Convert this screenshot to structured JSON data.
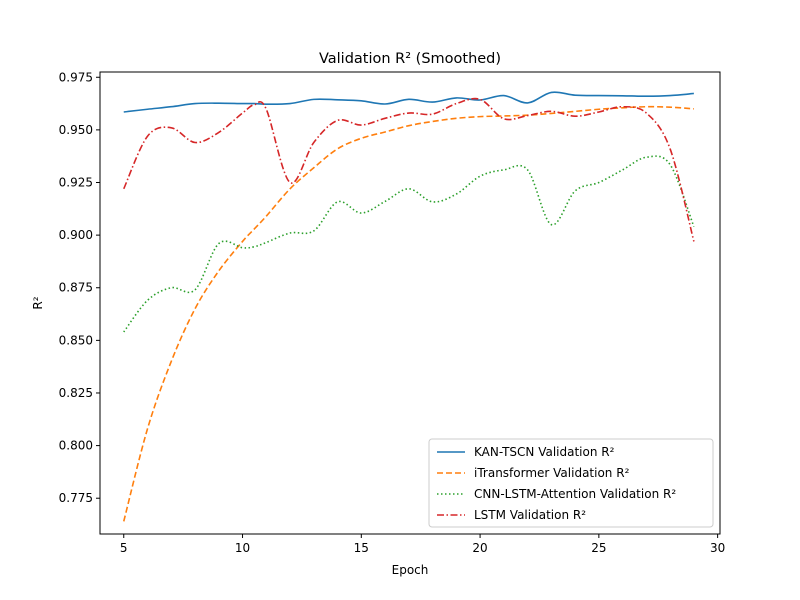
{
  "chart_data": {
    "type": "line",
    "title": "Validation R² (Smoothed)",
    "xlabel": "Epoch",
    "ylabel": "R²",
    "xlim": [
      4.0,
      30.1
    ],
    "ylim": [
      0.758,
      0.9775
    ],
    "xticks": [
      5,
      10,
      15,
      20,
      25,
      30
    ],
    "xtick_labels": [
      "5",
      "10",
      "15",
      "20",
      "25",
      "30"
    ],
    "yticks": [
      0.775,
      0.8,
      0.825,
      0.85,
      0.875,
      0.9,
      0.925,
      0.95,
      0.975
    ],
    "ytick_labels": [
      "0.775",
      "0.800",
      "0.825",
      "0.850",
      "0.875",
      "0.900",
      "0.925",
      "0.950",
      "0.975"
    ],
    "grid": false,
    "legend_position": "lower-right",
    "x": [
      5,
      6,
      7,
      8,
      9,
      10,
      10.5,
      11,
      12,
      13,
      14,
      15,
      16,
      17,
      18,
      19,
      20,
      21,
      22,
      23,
      24,
      25,
      26,
      27,
      28,
      29
    ],
    "series": [
      {
        "name": "KAN-TSCN Validation R²",
        "color": "#1f77b4",
        "dash": "solid",
        "values": [
          0.9585,
          0.9598,
          0.961,
          0.9625,
          0.9627,
          0.9625,
          0.9625,
          0.9622,
          0.9625,
          0.9645,
          0.9643,
          0.9638,
          0.9623,
          0.9645,
          0.9632,
          0.9652,
          0.9642,
          0.9663,
          0.9628,
          0.9678,
          0.9665,
          0.9663,
          0.9662,
          0.966,
          0.9663,
          0.9673
        ]
      },
      {
        "name": "iTransformer Validation R²",
        "color": "#ff7f0e",
        "dash": "dashed",
        "values": [
          0.764,
          0.808,
          0.84,
          0.865,
          0.883,
          0.897,
          0.903,
          0.909,
          0.922,
          0.932,
          0.941,
          0.946,
          0.949,
          0.952,
          0.954,
          0.9555,
          0.9563,
          0.9566,
          0.957,
          0.9578,
          0.9588,
          0.9598,
          0.9605,
          0.961,
          0.9608,
          0.96
        ]
      },
      {
        "name": "CNN-LSTM-Attention Validation R²",
        "color": "#2ca02c",
        "dash": "dotted",
        "values": [
          0.854,
          0.869,
          0.875,
          0.874,
          0.896,
          0.894,
          0.8945,
          0.8965,
          0.901,
          0.902,
          0.9158,
          0.9105,
          0.916,
          0.922,
          0.9158,
          0.9195,
          0.928,
          0.931,
          0.931,
          0.905,
          0.921,
          0.925,
          0.931,
          0.937,
          0.9335,
          0.904
        ]
      },
      {
        "name": "LSTM Validation R²",
        "color": "#d62728",
        "dash": "dashdot",
        "values": [
          0.922,
          0.947,
          0.951,
          0.944,
          0.9488,
          0.958,
          0.962,
          0.9598,
          0.925,
          0.944,
          0.9545,
          0.9523,
          0.9555,
          0.958,
          0.9575,
          0.9625,
          0.9645,
          0.9553,
          0.9568,
          0.9588,
          0.9565,
          0.9585,
          0.961,
          0.958,
          0.941,
          0.897
        ]
      }
    ]
  }
}
